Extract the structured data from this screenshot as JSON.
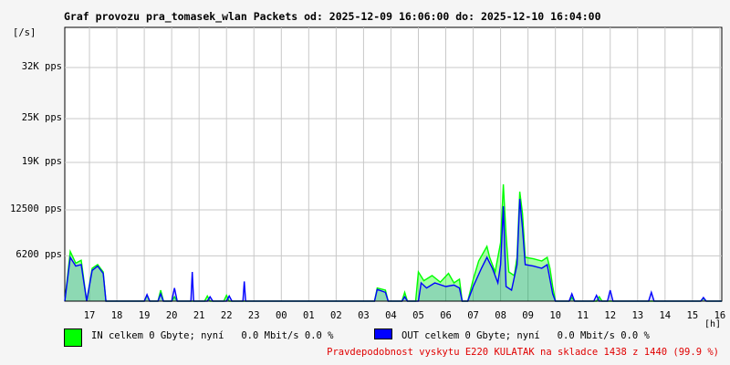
{
  "chart_data": {
    "type": "area",
    "title": "Graf provozu pra_tomasek_wlan Packets od: 2025-12-09 16:06:00 do: 2025-12-10 16:04:00",
    "ylabel": "[/s]",
    "xlabel": "[h]",
    "ylim": [
      0,
      37500
    ],
    "y_ticks": [
      {
        "value": 6200,
        "label": "6200 pps"
      },
      {
        "value": 12500,
        "label": "12500 pps"
      },
      {
        "value": 19000,
        "label": "19K pps"
      },
      {
        "value": 25000,
        "label": "25K pps"
      },
      {
        "value": 32000,
        "label": "32K pps"
      }
    ],
    "x_ticks": [
      "17",
      "18",
      "19",
      "20",
      "21",
      "22",
      "23",
      "00",
      "01",
      "02",
      "03",
      "04",
      "05",
      "06",
      "07",
      "08",
      "09",
      "10",
      "11",
      "12",
      "13",
      "14",
      "15",
      "16"
    ],
    "grid": true,
    "x_unit": "hour",
    "x_start": 16.1,
    "x_end": 40.07,
    "series": [
      {
        "name": "IN",
        "color": "#00ff00",
        "points": [
          [
            16.1,
            0
          ],
          [
            16.3,
            6800
          ],
          [
            16.5,
            5200
          ],
          [
            16.7,
            5600
          ],
          [
            16.9,
            0
          ],
          [
            17.1,
            4500
          ],
          [
            17.3,
            5000
          ],
          [
            17.5,
            4000
          ],
          [
            17.6,
            0
          ],
          [
            19,
            0
          ],
          [
            19.1,
            800
          ],
          [
            19.2,
            0
          ],
          [
            19.5,
            0
          ],
          [
            19.6,
            1500
          ],
          [
            19.7,
            0
          ],
          [
            20.0,
            0
          ],
          [
            20.1,
            600
          ],
          [
            20.2,
            0
          ],
          [
            21.2,
            0
          ],
          [
            21.3,
            700
          ],
          [
            21.4,
            0
          ],
          [
            21.9,
            0
          ],
          [
            22.0,
            800
          ],
          [
            22.1,
            0
          ],
          [
            27.4,
            0
          ],
          [
            27.5,
            1800
          ],
          [
            27.8,
            1500
          ],
          [
            27.9,
            0
          ],
          [
            28.4,
            0
          ],
          [
            28.5,
            1200
          ],
          [
            28.6,
            0
          ],
          [
            28.9,
            0
          ],
          [
            29.0,
            4000
          ],
          [
            29.2,
            2800
          ],
          [
            29.5,
            3500
          ],
          [
            29.8,
            2600
          ],
          [
            30.1,
            3800
          ],
          [
            30.3,
            2500
          ],
          [
            30.5,
            3000
          ],
          [
            30.6,
            0
          ],
          [
            30.8,
            0
          ],
          [
            31.0,
            3000
          ],
          [
            31.2,
            5500
          ],
          [
            31.5,
            7500
          ],
          [
            31.6,
            6000
          ],
          [
            31.8,
            4000
          ],
          [
            32.0,
            8000
          ],
          [
            32.1,
            16000
          ],
          [
            32.2,
            9000
          ],
          [
            32.3,
            4000
          ],
          [
            32.5,
            3500
          ],
          [
            32.6,
            6000
          ],
          [
            32.7,
            15000
          ],
          [
            32.8,
            12000
          ],
          [
            32.9,
            6000
          ],
          [
            33.2,
            5800
          ],
          [
            33.5,
            5500
          ],
          [
            33.7,
            6000
          ],
          [
            33.8,
            4500
          ],
          [
            33.9,
            2000
          ],
          [
            34.0,
            0
          ],
          [
            34.5,
            0
          ],
          [
            34.6,
            500
          ],
          [
            34.7,
            0
          ],
          [
            35.5,
            0
          ],
          [
            35.6,
            600
          ],
          [
            35.7,
            0
          ],
          [
            39.3,
            0
          ],
          [
            39.4,
            400
          ],
          [
            39.5,
            0
          ],
          [
            40.07,
            0
          ]
        ]
      },
      {
        "name": "OUT",
        "color": "#0000ff",
        "points": [
          [
            16.1,
            0
          ],
          [
            16.3,
            6000
          ],
          [
            16.5,
            4800
          ],
          [
            16.7,
            5000
          ],
          [
            16.9,
            0
          ],
          [
            17.1,
            4200
          ],
          [
            17.3,
            4800
          ],
          [
            17.5,
            3800
          ],
          [
            17.6,
            0
          ],
          [
            19,
            0
          ],
          [
            19.1,
            900
          ],
          [
            19.2,
            0
          ],
          [
            19.5,
            0
          ],
          [
            19.6,
            1000
          ],
          [
            19.7,
            0
          ],
          [
            20.0,
            0
          ],
          [
            20.1,
            1800
          ],
          [
            20.2,
            0
          ],
          [
            20.7,
            0
          ],
          [
            20.75,
            4000
          ],
          [
            20.8,
            0
          ],
          [
            21.3,
            0
          ],
          [
            21.4,
            600
          ],
          [
            21.5,
            0
          ],
          [
            22.0,
            0
          ],
          [
            22.1,
            700
          ],
          [
            22.2,
            0
          ],
          [
            22.6,
            0
          ],
          [
            22.65,
            2700
          ],
          [
            22.7,
            0
          ],
          [
            27.4,
            0
          ],
          [
            27.5,
            1600
          ],
          [
            27.8,
            1200
          ],
          [
            27.9,
            0
          ],
          [
            28.4,
            0
          ],
          [
            28.5,
            600
          ],
          [
            28.6,
            0
          ],
          [
            29.0,
            0
          ],
          [
            29.1,
            2500
          ],
          [
            29.3,
            1800
          ],
          [
            29.6,
            2500
          ],
          [
            30.0,
            2000
          ],
          [
            30.3,
            2200
          ],
          [
            30.5,
            1800
          ],
          [
            30.6,
            0
          ],
          [
            30.8,
            0
          ],
          [
            31.0,
            2000
          ],
          [
            31.3,
            4500
          ],
          [
            31.5,
            6000
          ],
          [
            31.7,
            4500
          ],
          [
            31.9,
            2500
          ],
          [
            32.0,
            5000
          ],
          [
            32.1,
            13000
          ],
          [
            32.2,
            2000
          ],
          [
            32.4,
            1500
          ],
          [
            32.6,
            5000
          ],
          [
            32.7,
            14000
          ],
          [
            32.8,
            10000
          ],
          [
            32.9,
            5000
          ],
          [
            33.2,
            4800
          ],
          [
            33.5,
            4500
          ],
          [
            33.7,
            5000
          ],
          [
            33.8,
            3000
          ],
          [
            33.9,
            1000
          ],
          [
            34.0,
            0
          ],
          [
            34.5,
            0
          ],
          [
            34.6,
            1000
          ],
          [
            34.7,
            0
          ],
          [
            35.4,
            0
          ],
          [
            35.5,
            800
          ],
          [
            35.6,
            0
          ],
          [
            35.9,
            0
          ],
          [
            36.0,
            1500
          ],
          [
            36.1,
            0
          ],
          [
            37.4,
            0
          ],
          [
            37.5,
            1200
          ],
          [
            37.6,
            0
          ],
          [
            39.3,
            0
          ],
          [
            39.4,
            500
          ],
          [
            39.5,
            0
          ],
          [
            40.07,
            0
          ]
        ]
      }
    ]
  },
  "legend": {
    "in_color": "#00ff00",
    "out_color": "#0000ff",
    "in_text": "IN celkem 0 Gbyte; nyní   0.0 Mbit/s 0.0 %",
    "out_text": "OUT celkem 0 Gbyte; nyní   0.0 Mbit/s 0.0 %"
  },
  "probability_text": "Pravdepodobnost vyskytu E220 KULATAK na skladce 1438 z 1440 (99.9 %)"
}
